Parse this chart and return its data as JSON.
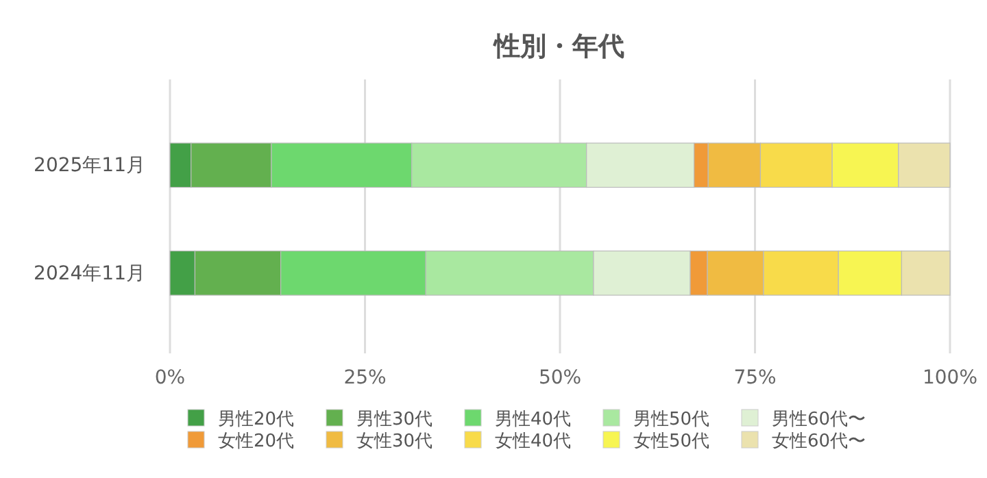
{
  "chart_data": {
    "type": "bar",
    "title": "性別・年代",
    "orientation": "horizontal",
    "stacked": true,
    "categories": [
      "2025年11月",
      "2024年11月"
    ],
    "series": [
      {
        "name": "男性20代",
        "color": "#43a047",
        "values": [
          2.7,
          3.2
        ]
      },
      {
        "name": "男性30代",
        "color": "#63b04f",
        "values": [
          10.3,
          11.0
        ]
      },
      {
        "name": "男性40代",
        "color": "#6dd86e",
        "values": [
          18.0,
          18.6
        ]
      },
      {
        "name": "男性50代",
        "color": "#a9e8a0",
        "values": [
          22.4,
          21.5
        ]
      },
      {
        "name": "男性60代〜",
        "color": "#dff0d4",
        "values": [
          13.8,
          12.4
        ]
      },
      {
        "name": "女性20代",
        "color": "#f09a38",
        "values": [
          1.8,
          2.2
        ]
      },
      {
        "name": "女性30代",
        "color": "#f0bb42",
        "values": [
          6.7,
          7.2
        ]
      },
      {
        "name": "女性40代",
        "color": "#f8db4a",
        "values": [
          9.2,
          9.6
        ]
      },
      {
        "name": "女性50代",
        "color": "#f7f552",
        "values": [
          8.5,
          8.1
        ]
      },
      {
        "name": "女性60代〜",
        "color": "#ebe2ae",
        "values": [
          6.6,
          6.2
        ]
      }
    ],
    "xlim": [
      0,
      100
    ],
    "xticks": [
      {
        "value": 0,
        "label": "0%"
      },
      {
        "value": 25,
        "label": "25%"
      },
      {
        "value": 50,
        "label": "50%"
      },
      {
        "value": 75,
        "label": "75%"
      },
      {
        "value": 100,
        "label": "100%"
      }
    ],
    "grid": "x",
    "legend": "bottom"
  }
}
